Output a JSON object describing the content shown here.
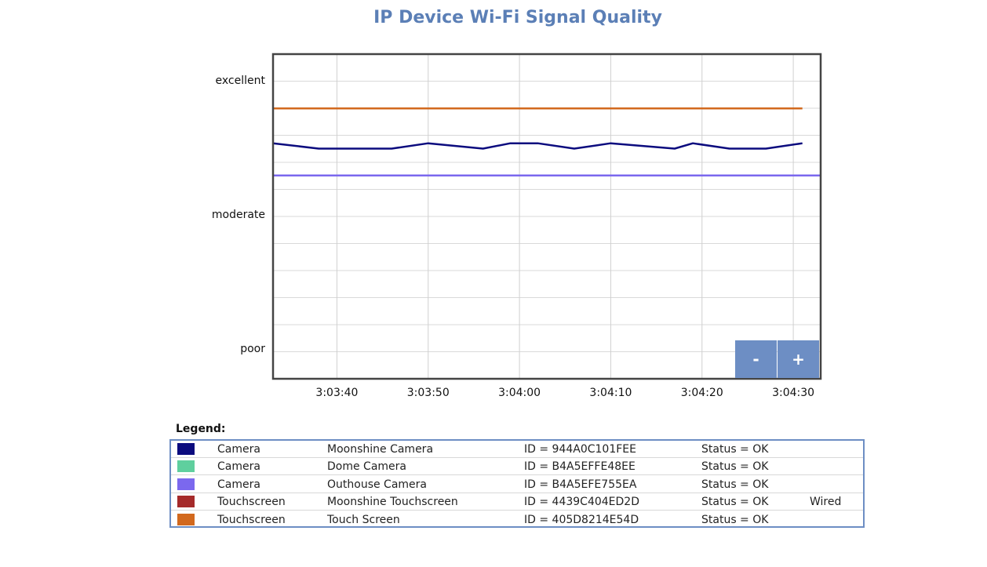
{
  "title": "IP Device Wi-Fi Signal Quality",
  "zoom": {
    "minus_label": "-",
    "plus_label": "+"
  },
  "legend": {
    "label": "Legend:",
    "rows": [
      {
        "color": "#0b0b7e",
        "type": "Camera",
        "name": "Moonshine Camera",
        "id": "ID = 944A0C101FEE",
        "status": "Status = OK",
        "extra": ""
      },
      {
        "color": "#5fcf9e",
        "type": "Camera",
        "name": "Dome Camera",
        "id": "ID = B4A5EFFE48EE",
        "status": "Status = OK",
        "extra": ""
      },
      {
        "color": "#7b68ee",
        "type": "Camera",
        "name": "Outhouse Camera",
        "id": "ID = B4A5EFE755EA",
        "status": "Status = OK",
        "extra": ""
      },
      {
        "color": "#a52a2a",
        "type": "Touchscreen",
        "name": "Moonshine Touchscreen",
        "id": "ID = 4439C404ED2D",
        "status": "Status = OK",
        "extra": "Wired"
      },
      {
        "color": "#d2691e",
        "type": "Touchscreen",
        "name": "Touch Screen",
        "id": "ID = 405D8214E54D",
        "status": "Status = OK",
        "extra": ""
      }
    ]
  },
  "chart_data": {
    "type": "line",
    "title": "IP Device Wi-Fi Signal Quality",
    "xlim": [
      "3:03:33",
      "3:04:33"
    ],
    "ylim": [
      0,
      100
    ],
    "x_ticks": [
      "3:03:40",
      "3:03:50",
      "3:04:00",
      "3:04:10",
      "3:04:20",
      "3:04:30"
    ],
    "y_ticks": [
      {
        "value": 0,
        "label": "poor"
      },
      {
        "value": 50,
        "label": "moderate"
      },
      {
        "value": 100,
        "label": "excellent"
      }
    ],
    "grid": true,
    "series": [
      {
        "name": "Moonshine Camera",
        "color": "#0b0b7e",
        "points": [
          [
            "3:03:33",
            77
          ],
          [
            "3:03:38",
            75
          ],
          [
            "3:03:46",
            75
          ],
          [
            "3:03:50",
            77
          ],
          [
            "3:03:56",
            75
          ],
          [
            "3:03:59",
            77
          ],
          [
            "3:04:02",
            77
          ],
          [
            "3:04:06",
            75
          ],
          [
            "3:04:10",
            77
          ],
          [
            "3:04:17",
            75
          ],
          [
            "3:04:19",
            77
          ],
          [
            "3:04:23",
            75
          ],
          [
            "3:04:27",
            75
          ],
          [
            "3:04:31",
            77
          ]
        ]
      },
      {
        "name": "Outhouse Camera",
        "color": "#7b68ee",
        "points": [
          [
            "3:03:33",
            65
          ],
          [
            "3:04:33",
            65
          ]
        ]
      },
      {
        "name": "Touch Screen",
        "color": "#d2691e",
        "points": [
          [
            "3:03:33",
            90
          ],
          [
            "3:04:31",
            90
          ]
        ]
      }
    ]
  }
}
